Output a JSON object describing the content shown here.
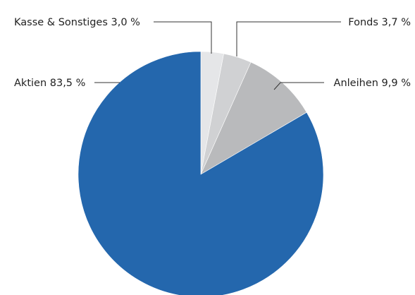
{
  "chart_data": {
    "type": "pie",
    "title": "",
    "start_angle_deg": 0,
    "direction": "clockwise",
    "slices": [
      {
        "label": "Kasse & Sonstiges",
        "value": 3.0,
        "display": "Kasse & Sonstiges 3,0 %",
        "color": "#e5e6e8"
      },
      {
        "label": "Fonds",
        "value": 3.7,
        "display": "Fonds 3,7 %",
        "color": "#d0d1d3"
      },
      {
        "label": "Anleihen",
        "value": 9.9,
        "display": "Anleihen 9,9 %",
        "color": "#b9babc"
      },
      {
        "label": "Aktien",
        "value": 83.5,
        "display": "Aktien 83,5 %",
        "color": "#2467ad"
      }
    ]
  }
}
